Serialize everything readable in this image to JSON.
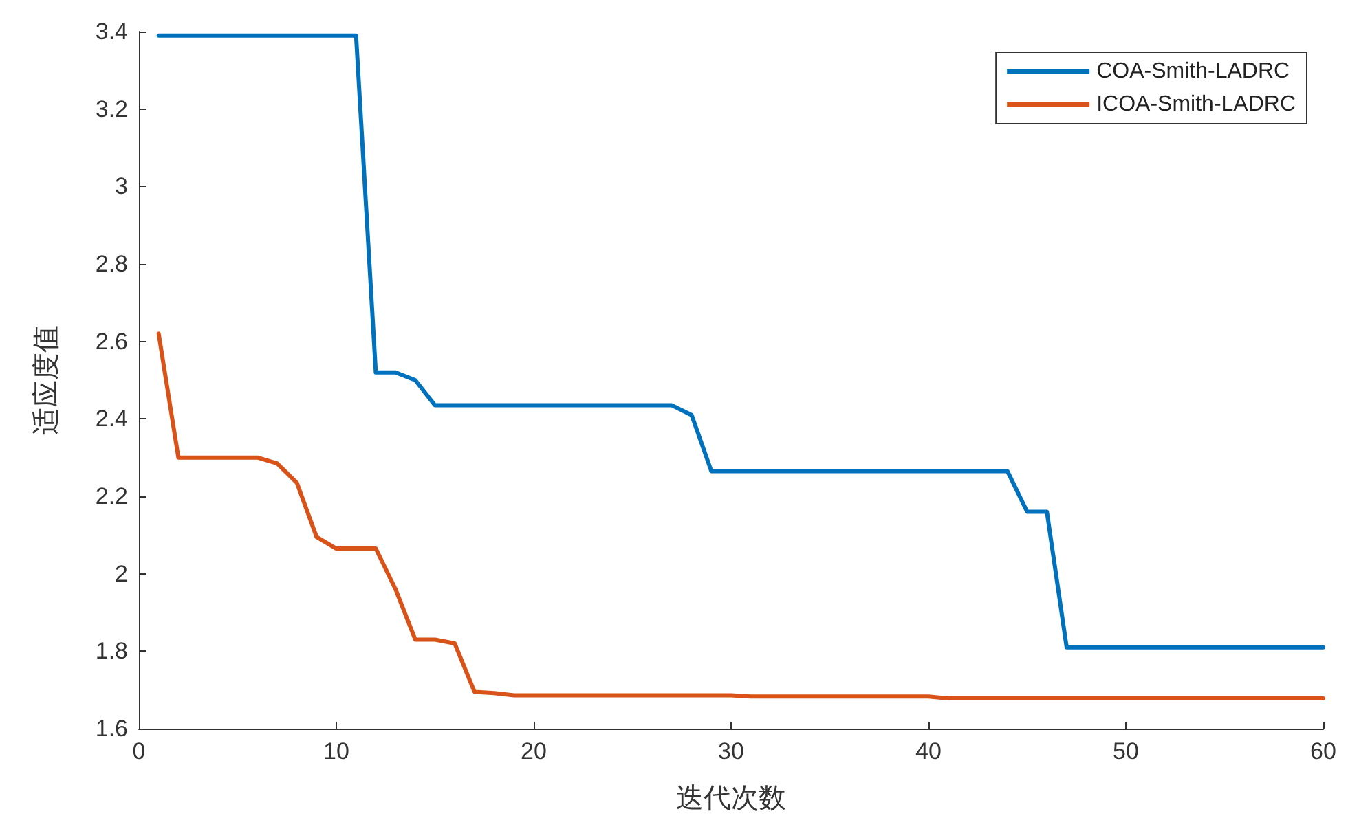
{
  "chart_data": {
    "type": "line",
    "xlabel": "迭代次数",
    "ylabel": "适应度值",
    "x": [
      1,
      2,
      3,
      4,
      5,
      6,
      7,
      8,
      9,
      10,
      11,
      12,
      13,
      14,
      15,
      16,
      17,
      18,
      19,
      20,
      21,
      22,
      23,
      24,
      25,
      26,
      27,
      28,
      29,
      30,
      31,
      32,
      33,
      34,
      35,
      36,
      37,
      38,
      39,
      40,
      41,
      42,
      43,
      44,
      45,
      46,
      47,
      48,
      49,
      50,
      51,
      52,
      53,
      54,
      55,
      56,
      57,
      58,
      59,
      60
    ],
    "series": [
      {
        "name": "COA-Smith-LADRC",
        "color": "#0072bd",
        "values": [
          3.39,
          3.39,
          3.39,
          3.39,
          3.39,
          3.39,
          3.39,
          3.39,
          3.39,
          3.39,
          3.39,
          2.52,
          2.52,
          2.5,
          2.435,
          2.435,
          2.435,
          2.435,
          2.435,
          2.435,
          2.435,
          2.435,
          2.435,
          2.435,
          2.435,
          2.435,
          2.435,
          2.41,
          2.265,
          2.265,
          2.265,
          2.265,
          2.265,
          2.265,
          2.265,
          2.265,
          2.265,
          2.265,
          2.265,
          2.265,
          2.265,
          2.265,
          2.265,
          2.265,
          2.16,
          2.16,
          1.81,
          1.81,
          1.81,
          1.81,
          1.81,
          1.81,
          1.81,
          1.81,
          1.81,
          1.81,
          1.81,
          1.81,
          1.81,
          1.81
        ]
      },
      {
        "name": "ICOA-Smith-LADRC",
        "color": "#d95319",
        "values": [
          2.62,
          2.3,
          2.3,
          2.3,
          2.3,
          2.3,
          2.285,
          2.235,
          2.095,
          2.065,
          2.065,
          2.065,
          1.96,
          1.83,
          1.83,
          1.82,
          1.695,
          1.692,
          1.686,
          1.686,
          1.686,
          1.686,
          1.686,
          1.686,
          1.686,
          1.686,
          1.686,
          1.686,
          1.686,
          1.686,
          1.683,
          1.683,
          1.683,
          1.683,
          1.683,
          1.683,
          1.683,
          1.683,
          1.683,
          1.683,
          1.678,
          1.678,
          1.678,
          1.678,
          1.678,
          1.678,
          1.678,
          1.678,
          1.678,
          1.678,
          1.678,
          1.678,
          1.678,
          1.678,
          1.678,
          1.678,
          1.678,
          1.678,
          1.678,
          1.678
        ]
      }
    ],
    "xlim": [
      0,
      60
    ],
    "xticks": [
      0,
      10,
      20,
      30,
      40,
      50,
      60
    ],
    "ylim": [
      1.6,
      3.4
    ],
    "yticks": [
      1.6,
      1.8,
      2,
      2.2,
      2.4,
      2.6,
      2.8,
      3,
      3.2,
      3.4
    ],
    "grid": false,
    "legend": "top right",
    "marker": "none",
    "line_style": "solid"
  }
}
